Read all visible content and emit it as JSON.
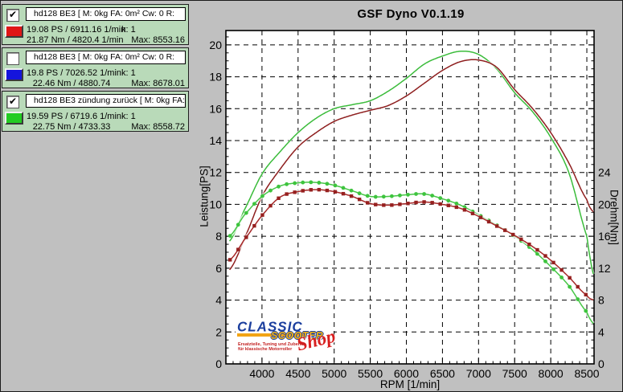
{
  "window": {
    "title": "GSF Dyno V0.1.19"
  },
  "legend": [
    {
      "checked": true,
      "check_glyph": "✔",
      "color": "#e01616",
      "title": "hd128 BE3 [ M: 0kg  FA: 0m²  Cw: 0  R:",
      "ps_line": "19.08 PS / 6911.16 1/min",
      "k_line": "k: 1",
      "nm_line": "21.87 Nm / 4820.4 1/min",
      "max_line": "Max: 8553.16"
    },
    {
      "checked": false,
      "check_glyph": "",
      "color": "#1414dd",
      "title": "hd128 BE3 [ M: 0kg  FA: 0m²  Cw: 0  R:",
      "ps_line": "19.8 PS / 7026.52 1/min",
      "k_line": "k: 1",
      "nm_line": "22.46 Nm / 4880.74",
      "max_line": "Max: 8678.01"
    },
    {
      "checked": true,
      "check_glyph": "✔",
      "color": "#22cc22",
      "title": "hd128 BE3 zündung zurück [ M: 0kg  FA:",
      "ps_line": "19.59 PS / 6719.6 1/min",
      "k_line": "k: 1",
      "nm_line": "22.75 Nm / 4733.33",
      "max_line": "Max: 8558.72"
    }
  ],
  "chart_data": {
    "type": "line",
    "title": "GSF Dyno V0.1.19",
    "xlabel": "RPM [1/min]",
    "ylabel_left": "Leistung[PS]",
    "ylabel_right": "Drehm[Nm]",
    "grid": "dashed",
    "xlim": [
      3500,
      8600
    ],
    "ylim_left": [
      0,
      20.9
    ],
    "ylim_right": [
      0,
      41.8
    ],
    "x_ticks": [
      4000,
      4500,
      5000,
      5500,
      6000,
      6500,
      7000,
      7500,
      8000,
      8500
    ],
    "y_ticks_left": [
      0,
      2,
      4,
      6,
      8,
      10,
      12,
      14,
      16,
      18,
      20
    ],
    "y_ticks_right_labeled": [
      0,
      4,
      8,
      12,
      16,
      20,
      24
    ],
    "x": [
      3550,
      3750,
      4000,
      4250,
      4500,
      4750,
      5000,
      5250,
      5500,
      5750,
      6000,
      6250,
      6500,
      6750,
      7000,
      7250,
      7500,
      7750,
      8000,
      8250,
      8500,
      8600
    ],
    "series": [
      {
        "name": "hd128 BE3 zündung zurück — Leistung",
        "unit": "PS",
        "axis": "left",
        "color": "#3bbc3b",
        "marker": "none",
        "peak": "19.59 PS / 6719.6 1/min",
        "values": [
          7.7,
          9.6,
          11.9,
          13.3,
          14.5,
          15.4,
          16.0,
          16.25,
          16.5,
          17.1,
          17.9,
          18.8,
          19.3,
          19.6,
          19.4,
          18.5,
          17.0,
          15.8,
          14.2,
          12.0,
          8.0,
          5.5
        ]
      },
      {
        "name": "hd128 BE3 — Leistung",
        "unit": "PS",
        "axis": "left",
        "color": "#8e1e1e",
        "marker": "none",
        "peak": "19.08 PS / 6911.16 1/min",
        "values": [
          5.9,
          7.8,
          10.5,
          12.2,
          13.6,
          14.5,
          15.2,
          15.6,
          15.9,
          16.2,
          16.8,
          17.6,
          18.4,
          18.95,
          19.05,
          18.6,
          17.2,
          16.0,
          14.5,
          12.6,
          10.3,
          9.5
        ]
      },
      {
        "name": "hd128 BE3 zündung zurück — Drehmoment",
        "unit": "Nm",
        "axis": "right",
        "color": "#46c646",
        "marker": "circle",
        "marker_color": "#3ec43e",
        "peak": "22.75 Nm / 4733.33",
        "values": [
          16.0,
          18.6,
          21.0,
          22.3,
          22.7,
          22.75,
          22.4,
          21.7,
          21.0,
          21.0,
          21.2,
          21.3,
          20.7,
          19.9,
          18.7,
          17.4,
          16.0,
          14.3,
          12.2,
          9.8,
          6.5,
          5.0
        ]
      },
      {
        "name": "hd128 BE3 — Drehmoment",
        "unit": "Nm",
        "axis": "right",
        "color": "#a62828",
        "marker": "square",
        "marker_color": "#96201f",
        "peak": "21.87 Nm / 4820.4 1/min",
        "values": [
          13.0,
          15.5,
          18.6,
          20.9,
          21.6,
          21.85,
          21.6,
          21.0,
          20.1,
          19.9,
          20.1,
          20.3,
          20.0,
          19.5,
          18.5,
          17.3,
          16.1,
          14.7,
          13.0,
          10.9,
          8.6,
          8.0
        ]
      }
    ]
  },
  "logo": {
    "line1": "CLASSIC",
    "line2": "SCOOTER",
    "line3": "Shop",
    "tagline1": "Ersatzteile, Tuning und Zubehör",
    "tagline2": "für klassische Motorroller"
  }
}
